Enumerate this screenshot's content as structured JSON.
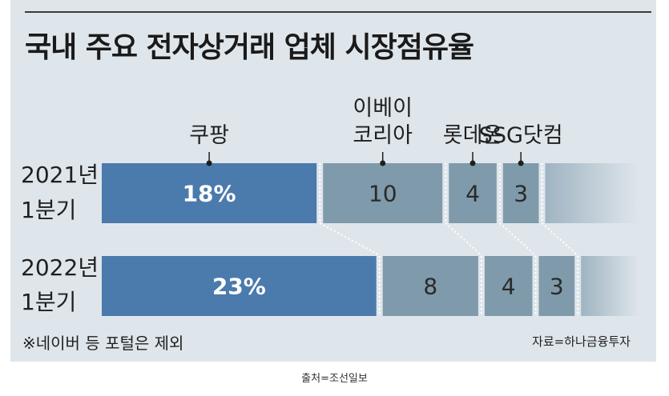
{
  "title": "국내 주요 전자상거래 업체 시장점유율",
  "note": "※네이버 등 포털은 제외",
  "source": "자료=하나금융투자",
  "credit": "출처=조선일보",
  "colors": {
    "first": "#4b7aad",
    "others": "#7f9aab",
    "rest": "#b9c9d4",
    "panel": "#dfe6eb"
  },
  "chart_data": {
    "type": "bar",
    "orientation": "horizontal-stacked",
    "categories": [
      "2021년 1분기",
      "2022년 1분기"
    ],
    "series": [
      {
        "name": "쿠팡",
        "values": [
          18,
          23
        ],
        "labels": [
          "18%",
          "23%"
        ]
      },
      {
        "name": "이베이 코리아",
        "values": [
          10,
          8
        ],
        "labels": [
          "10",
          "8"
        ]
      },
      {
        "name": "롯데온",
        "values": [
          4,
          4
        ],
        "labels": [
          "4",
          "4"
        ]
      },
      {
        "name": "SSG닷컴",
        "values": [
          3,
          3
        ],
        "labels": [
          "3",
          "3"
        ]
      }
    ]
  }
}
